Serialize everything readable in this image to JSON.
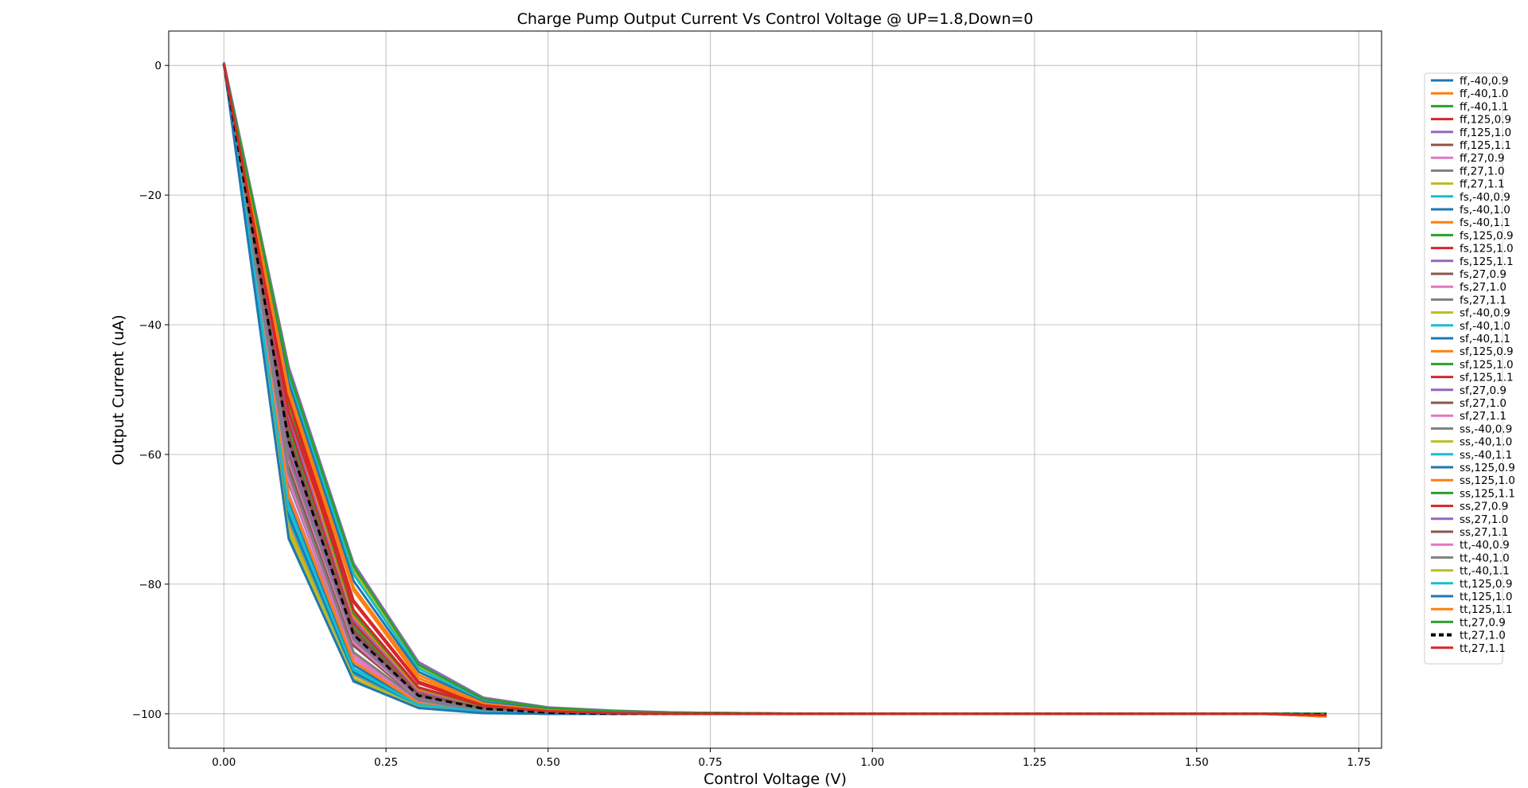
{
  "chart_data": {
    "type": "line",
    "title": "Charge Pump Output Current Vs Control Voltage @ UP=1.8,Down=0",
    "xlabel": "Control Voltage (V)",
    "ylabel": "Output Current (uA)",
    "xlim": [
      -0.085,
      1.785
    ],
    "ylim": [
      -105.3,
      5.3
    ],
    "xticks": [
      0.0,
      0.25,
      0.5,
      0.75,
      1.0,
      1.25,
      1.5,
      1.75
    ],
    "xtick_labels": [
      "0.00",
      "0.25",
      "0.50",
      "0.75",
      "1.00",
      "1.25",
      "1.50",
      "1.75"
    ],
    "yticks": [
      0,
      -20,
      -40,
      -60,
      -80,
      -100
    ],
    "ytick_labels": [
      "0",
      "−20",
      "−40",
      "−60",
      "−80",
      "−100"
    ],
    "grid": true,
    "legend_position": "right",
    "x": [
      0.0,
      0.1,
      0.2,
      0.3,
      0.4,
      0.5,
      0.6,
      0.7,
      0.8,
      0.9,
      1.0,
      1.1,
      1.2,
      1.3,
      1.4,
      1.5,
      1.6,
      1.7
    ],
    "series": [
      {
        "name": "ff,-40,0.9",
        "color": "#1f77b4",
        "values": [
          0.3,
          -72.5,
          -94.8,
          -99.0,
          -99.8,
          -100.0,
          -100.0,
          -100.0,
          -100.0,
          -100.0,
          -100.0,
          -100.0,
          -100.0,
          -100.0,
          -100.0,
          -100.0,
          -100.0,
          -100.0
        ]
      },
      {
        "name": "ff,-40,1.0",
        "color": "#ff7f0e",
        "values": [
          0.3,
          -70.5,
          -94.0,
          -98.8,
          -99.8,
          -100.0,
          -100.0,
          -100.0,
          -100.0,
          -100.0,
          -100.0,
          -100.0,
          -100.0,
          -100.0,
          -100.0,
          -100.0,
          -100.0,
          -100.0
        ]
      },
      {
        "name": "ff,-40,1.1",
        "color": "#2ca02c",
        "values": [
          0.3,
          -69.0,
          -93.5,
          -98.6,
          -99.7,
          -100.0,
          -100.0,
          -100.0,
          -100.0,
          -100.0,
          -100.0,
          -100.0,
          -100.0,
          -100.0,
          -100.0,
          -100.0,
          -100.0,
          -100.0
        ]
      },
      {
        "name": "ff,125,0.9",
        "color": "#d62728",
        "values": [
          0.2,
          -60.0,
          -89.0,
          -97.5,
          -99.3,
          -99.8,
          -100.0,
          -100.0,
          -100.0,
          -100.0,
          -100.0,
          -100.0,
          -100.0,
          -100.0,
          -100.0,
          -100.0,
          -100.0,
          -100.2
        ]
      },
      {
        "name": "ff,125,1.0",
        "color": "#9467bd",
        "values": [
          0.2,
          -58.5,
          -88.0,
          -97.2,
          -99.2,
          -99.8,
          -100.0,
          -100.0,
          -100.0,
          -100.0,
          -100.0,
          -100.0,
          -100.0,
          -100.0,
          -100.0,
          -100.0,
          -100.0,
          -100.2
        ]
      },
      {
        "name": "ff,125,1.1",
        "color": "#8c564b",
        "values": [
          0.2,
          -57.5,
          -87.5,
          -97.0,
          -99.1,
          -99.8,
          -100.0,
          -100.0,
          -100.0,
          -100.0,
          -100.0,
          -100.0,
          -100.0,
          -100.0,
          -100.0,
          -100.0,
          -100.0,
          -100.2
        ]
      },
      {
        "name": "ff,27,0.9",
        "color": "#e377c2",
        "values": [
          0.3,
          -66.0,
          -91.5,
          -98.2,
          -99.6,
          -99.9,
          -100.0,
          -100.0,
          -100.0,
          -100.0,
          -100.0,
          -100.0,
          -100.0,
          -100.0,
          -100.0,
          -100.0,
          -100.0,
          -100.0
        ]
      },
      {
        "name": "ff,27,1.0",
        "color": "#7f7f7f",
        "values": [
          0.3,
          -64.5,
          -91.0,
          -98.0,
          -99.5,
          -99.9,
          -100.0,
          -100.0,
          -100.0,
          -100.0,
          -100.0,
          -100.0,
          -100.0,
          -100.0,
          -100.0,
          -100.0,
          -100.0,
          -100.0
        ]
      },
      {
        "name": "ff,27,1.1",
        "color": "#bcbd22",
        "values": [
          0.3,
          -63.5,
          -90.5,
          -97.9,
          -99.5,
          -99.9,
          -100.0,
          -100.0,
          -100.0,
          -100.0,
          -100.0,
          -100.0,
          -100.0,
          -100.0,
          -100.0,
          -100.0,
          -100.0,
          -100.0
        ]
      },
      {
        "name": "fs,-40,0.9",
        "color": "#17becf",
        "values": [
          0.3,
          -68.0,
          -93.0,
          -98.5,
          -99.7,
          -100.0,
          -100.0,
          -100.0,
          -100.0,
          -100.0,
          -100.0,
          -100.0,
          -100.0,
          -100.0,
          -100.0,
          -100.0,
          -100.0,
          -100.0
        ]
      },
      {
        "name": "fs,-40,1.0",
        "color": "#1f77b4",
        "values": [
          0.3,
          -67.0,
          -92.5,
          -98.4,
          -99.7,
          -100.0,
          -100.0,
          -100.0,
          -100.0,
          -100.0,
          -100.0,
          -100.0,
          -100.0,
          -100.0,
          -100.0,
          -100.0,
          -100.0,
          -100.0
        ]
      },
      {
        "name": "fs,-40,1.1",
        "color": "#ff7f0e",
        "values": [
          0.3,
          -66.5,
          -92.0,
          -98.3,
          -99.6,
          -100.0,
          -100.0,
          -100.0,
          -100.0,
          -100.0,
          -100.0,
          -100.0,
          -100.0,
          -100.0,
          -100.0,
          -100.0,
          -100.0,
          -100.0
        ]
      },
      {
        "name": "fs,125,0.9",
        "color": "#2ca02c",
        "values": [
          0.2,
          -56.0,
          -86.5,
          -96.8,
          -99.0,
          -99.7,
          -99.9,
          -100.0,
          -100.0,
          -100.0,
          -100.0,
          -100.0,
          -100.0,
          -100.0,
          -100.0,
          -100.0,
          -100.0,
          -100.2
        ]
      },
      {
        "name": "fs,125,1.0",
        "color": "#d62728",
        "values": [
          0.2,
          -55.0,
          -86.0,
          -96.6,
          -99.0,
          -99.7,
          -99.9,
          -100.0,
          -100.0,
          -100.0,
          -100.0,
          -100.0,
          -100.0,
          -100.0,
          -100.0,
          -100.0,
          -100.0,
          -100.2
        ]
      },
      {
        "name": "fs,125,1.1",
        "color": "#9467bd",
        "values": [
          0.2,
          -54.0,
          -85.5,
          -96.5,
          -98.9,
          -99.7,
          -99.9,
          -100.0,
          -100.0,
          -100.0,
          -100.0,
          -100.0,
          -100.0,
          -100.0,
          -100.0,
          -100.0,
          -100.0,
          -100.2
        ]
      },
      {
        "name": "fs,27,0.9",
        "color": "#8c564b",
        "values": [
          0.3,
          -62.0,
          -89.5,
          -97.7,
          -99.4,
          -99.9,
          -100.0,
          -100.0,
          -100.0,
          -100.0,
          -100.0,
          -100.0,
          -100.0,
          -100.0,
          -100.0,
          -100.0,
          -100.0,
          -100.0
        ]
      },
      {
        "name": "fs,27,1.0",
        "color": "#e377c2",
        "values": [
          0.3,
          -61.0,
          -89.0,
          -97.6,
          -99.4,
          -99.9,
          -100.0,
          -100.0,
          -100.0,
          -100.0,
          -100.0,
          -100.0,
          -100.0,
          -100.0,
          -100.0,
          -100.0,
          -100.0,
          -100.0
        ]
      },
      {
        "name": "fs,27,1.1",
        "color": "#7f7f7f",
        "values": [
          0.3,
          -60.5,
          -88.5,
          -97.5,
          -99.3,
          -99.9,
          -100.0,
          -100.0,
          -100.0,
          -100.0,
          -100.0,
          -100.0,
          -100.0,
          -100.0,
          -100.0,
          -100.0,
          -100.0,
          -100.0
        ]
      },
      {
        "name": "sf,-40,0.9",
        "color": "#bcbd22",
        "values": [
          0.3,
          -71.5,
          -94.5,
          -98.9,
          -99.8,
          -100.0,
          -100.0,
          -100.0,
          -100.0,
          -100.0,
          -100.0,
          -100.0,
          -100.0,
          -100.0,
          -100.0,
          -100.0,
          -100.0,
          -100.0
        ]
      },
      {
        "name": "sf,-40,1.0",
        "color": "#17becf",
        "values": [
          0.3,
          -70.0,
          -93.8,
          -98.7,
          -99.8,
          -100.0,
          -100.0,
          -100.0,
          -100.0,
          -100.0,
          -100.0,
          -100.0,
          -100.0,
          -100.0,
          -100.0,
          -100.0,
          -100.0,
          -100.0
        ]
      },
      {
        "name": "sf,-40,1.1",
        "color": "#1f77b4",
        "values": [
          0.3,
          -69.5,
          -93.6,
          -98.6,
          -99.7,
          -100.0,
          -100.0,
          -100.0,
          -100.0,
          -100.0,
          -100.0,
          -100.0,
          -100.0,
          -100.0,
          -100.0,
          -100.0,
          -100.0,
          -100.0
        ]
      },
      {
        "name": "sf,125,0.9",
        "color": "#ff7f0e",
        "values": [
          0.1,
          -53.0,
          -85.0,
          -96.2,
          -98.8,
          -99.6,
          -99.9,
          -100.0,
          -100.0,
          -100.0,
          -100.0,
          -100.0,
          -100.0,
          -100.0,
          -100.0,
          -100.0,
          -100.0,
          -100.3
        ]
      },
      {
        "name": "sf,125,1.0",
        "color": "#2ca02c",
        "values": [
          0.1,
          -52.0,
          -84.5,
          -96.0,
          -98.8,
          -99.6,
          -99.9,
          -100.0,
          -100.0,
          -100.0,
          -100.0,
          -100.0,
          -100.0,
          -100.0,
          -100.0,
          -100.0,
          -100.0,
          -100.3
        ]
      },
      {
        "name": "sf,125,1.1",
        "color": "#d62728",
        "values": [
          0.1,
          -51.5,
          -84.0,
          -95.9,
          -98.7,
          -99.6,
          -99.9,
          -100.0,
          -100.0,
          -100.0,
          -100.0,
          -100.0,
          -100.0,
          -100.0,
          -100.0,
          -100.0,
          -100.0,
          -100.3
        ]
      },
      {
        "name": "sf,27,0.9",
        "color": "#9467bd",
        "values": [
          0.2,
          -59.0,
          -88.0,
          -97.3,
          -99.2,
          -99.8,
          -100.0,
          -100.0,
          -100.0,
          -100.0,
          -100.0,
          -100.0,
          -100.0,
          -100.0,
          -100.0,
          -100.0,
          -100.0,
          -100.1
        ]
      },
      {
        "name": "sf,27,1.0",
        "color": "#8c564b",
        "values": [
          0.2,
          -58.0,
          -87.5,
          -97.1,
          -99.1,
          -99.8,
          -100.0,
          -100.0,
          -100.0,
          -100.0,
          -100.0,
          -100.0,
          -100.0,
          -100.0,
          -100.0,
          -100.0,
          -100.0,
          -100.1
        ]
      },
      {
        "name": "sf,27,1.1",
        "color": "#e377c2",
        "values": [
          0.2,
          -57.0,
          -87.0,
          -97.0,
          -99.1,
          -99.8,
          -100.0,
          -100.0,
          -100.0,
          -100.0,
          -100.0,
          -100.0,
          -100.0,
          -100.0,
          -100.0,
          -100.0,
          -100.0,
          -100.1
        ]
      },
      {
        "name": "ss,-40,0.9",
        "color": "#7f7f7f",
        "values": [
          0.2,
          -47.0,
          -77.5,
          -92.5,
          -97.8,
          -99.2,
          -99.7,
          -99.9,
          -100.0,
          -100.0,
          -100.0,
          -100.0,
          -100.0,
          -100.0,
          -100.0,
          -100.0,
          -100.0,
          -100.0
        ]
      },
      {
        "name": "ss,-40,1.0",
        "color": "#bcbd22",
        "values": [
          0.2,
          -47.5,
          -78.0,
          -92.8,
          -97.9,
          -99.3,
          -99.7,
          -99.9,
          -100.0,
          -100.0,
          -100.0,
          -100.0,
          -100.0,
          -100.0,
          -100.0,
          -100.0,
          -100.0,
          -100.0
        ]
      },
      {
        "name": "ss,-40,1.1",
        "color": "#17becf",
        "values": [
          0.2,
          -48.0,
          -78.5,
          -93.0,
          -98.0,
          -99.3,
          -99.8,
          -99.9,
          -100.0,
          -100.0,
          -100.0,
          -100.0,
          -100.0,
          -100.0,
          -100.0,
          -100.0,
          -100.0,
          -100.0
        ]
      },
      {
        "name": "ss,125,0.9",
        "color": "#1f77b4",
        "values": [
          0.1,
          -49.0,
          -79.5,
          -93.5,
          -98.2,
          -99.4,
          -99.8,
          -99.9,
          -100.0,
          -100.0,
          -100.0,
          -100.0,
          -100.0,
          -100.0,
          -100.0,
          -100.0,
          -100.0,
          -100.4
        ]
      },
      {
        "name": "ss,125,1.0",
        "color": "#ff7f0e",
        "values": [
          0.1,
          -50.0,
          -80.5,
          -94.0,
          -98.4,
          -99.5,
          -99.8,
          -99.9,
          -100.0,
          -100.0,
          -100.0,
          -100.0,
          -100.0,
          -100.0,
          -100.0,
          -100.0,
          -100.0,
          -100.4
        ]
      },
      {
        "name": "ss,125,1.1",
        "color": "#2ca02c",
        "values": [
          0.2,
          -46.8,
          -77.0,
          -92.3,
          -97.7,
          -99.1,
          -99.6,
          -99.8,
          -99.9,
          -100.0,
          -100.0,
          -100.0,
          -100.0,
          -100.0,
          -100.0,
          -100.0,
          -100.0,
          -100.0
        ]
      },
      {
        "name": "ss,27,0.9",
        "color": "#d62728",
        "values": [
          0.2,
          -51.0,
          -82.5,
          -95.0,
          -98.6,
          -99.5,
          -99.8,
          -100.0,
          -100.0,
          -100.0,
          -100.0,
          -100.0,
          -100.0,
          -100.0,
          -100.0,
          -100.0,
          -100.0,
          -100.1
        ]
      },
      {
        "name": "ss,27,1.0",
        "color": "#9467bd",
        "values": [
          0.5,
          -46.5,
          -76.8,
          -92.0,
          -97.5,
          -99.0,
          -99.5,
          -99.8,
          -99.9,
          -100.0,
          -100.0,
          -100.0,
          -100.0,
          -100.0,
          -100.0,
          -100.0,
          -100.0,
          -100.0
        ]
      },
      {
        "name": "ss,27,1.1",
        "color": "#8c564b",
        "values": [
          0.2,
          -57.0,
          -87.0,
          -97.0,
          -99.1,
          -99.8,
          -100.0,
          -100.0,
          -100.0,
          -100.0,
          -100.0,
          -100.0,
          -100.0,
          -100.0,
          -100.0,
          -100.0,
          -100.0,
          -100.1
        ]
      },
      {
        "name": "tt,-40,0.9",
        "color": "#e377c2",
        "values": [
          0.3,
          -64.0,
          -91.0,
          -98.0,
          -99.5,
          -99.9,
          -100.0,
          -100.0,
          -100.0,
          -100.0,
          -100.0,
          -100.0,
          -100.0,
          -100.0,
          -100.0,
          -100.0,
          -100.0,
          -100.0
        ]
      },
      {
        "name": "tt,-40,1.0",
        "color": "#7f7f7f",
        "values": [
          0.3,
          -63.0,
          -90.5,
          -97.9,
          -99.5,
          -99.9,
          -100.0,
          -100.0,
          -100.0,
          -100.0,
          -100.0,
          -100.0,
          -100.0,
          -100.0,
          -100.0,
          -100.0,
          -100.0,
          -100.0
        ]
      },
      {
        "name": "tt,-40,1.1",
        "color": "#bcbd22",
        "values": [
          0.3,
          -72.0,
          -94.5,
          -99.0,
          -99.8,
          -100.0,
          -100.0,
          -100.0,
          -100.0,
          -100.0,
          -100.0,
          -100.0,
          -100.0,
          -100.0,
          -100.0,
          -100.0,
          -100.0,
          -100.0
        ]
      },
      {
        "name": "tt,125,0.9",
        "color": "#17becf",
        "values": [
          0.3,
          -68.5,
          -93.2,
          -98.6,
          -99.7,
          -100.0,
          -100.0,
          -100.0,
          -100.0,
          -100.0,
          -100.0,
          -100.0,
          -100.0,
          -100.0,
          -100.0,
          -100.0,
          -100.0,
          -100.0
        ]
      },
      {
        "name": "tt,125,1.0",
        "color": "#1f77b4",
        "values": [
          0.3,
          -73.0,
          -95.0,
          -99.1,
          -99.9,
          -100.0,
          -100.0,
          -100.0,
          -100.0,
          -100.0,
          -100.0,
          -100.0,
          -100.0,
          -100.0,
          -100.0,
          -100.0,
          -100.0,
          -100.0
        ]
      },
      {
        "name": "tt,125,1.1",
        "color": "#ff7f0e",
        "values": [
          0.2,
          -50.5,
          -81.0,
          -94.5,
          -98.5,
          -99.5,
          -99.8,
          -100.0,
          -100.0,
          -100.0,
          -100.0,
          -100.0,
          -100.0,
          -100.0,
          -100.0,
          -100.0,
          -100.0,
          -100.2
        ]
      },
      {
        "name": "tt,27,0.9",
        "color": "#2ca02c",
        "values": [
          0.2,
          -47.2,
          -77.2,
          -92.4,
          -97.7,
          -99.1,
          -99.6,
          -99.8,
          -99.9,
          -100.0,
          -100.0,
          -100.0,
          -100.0,
          -100.0,
          -100.0,
          -100.0,
          -100.0,
          -100.0
        ]
      },
      {
        "name": "tt,27,1.0",
        "color": "#000000",
        "dashed": true,
        "values": [
          0.2,
          -58.0,
          -87.8,
          -97.2,
          -99.2,
          -99.8,
          -100.0,
          -100.0,
          -100.0,
          -100.0,
          -100.0,
          -100.0,
          -100.0,
          -100.0,
          -100.0,
          -100.0,
          -100.0,
          -100.1
        ]
      },
      {
        "name": "tt,27,1.1",
        "color": "#d62728",
        "values": [
          0.2,
          -53.5,
          -82.8,
          -95.3,
          -98.7,
          -99.6,
          -99.9,
          -100.0,
          -100.0,
          -100.0,
          -100.0,
          -100.0,
          -100.0,
          -100.0,
          -100.0,
          -100.0,
          -100.0,
          -100.2
        ]
      }
    ]
  }
}
